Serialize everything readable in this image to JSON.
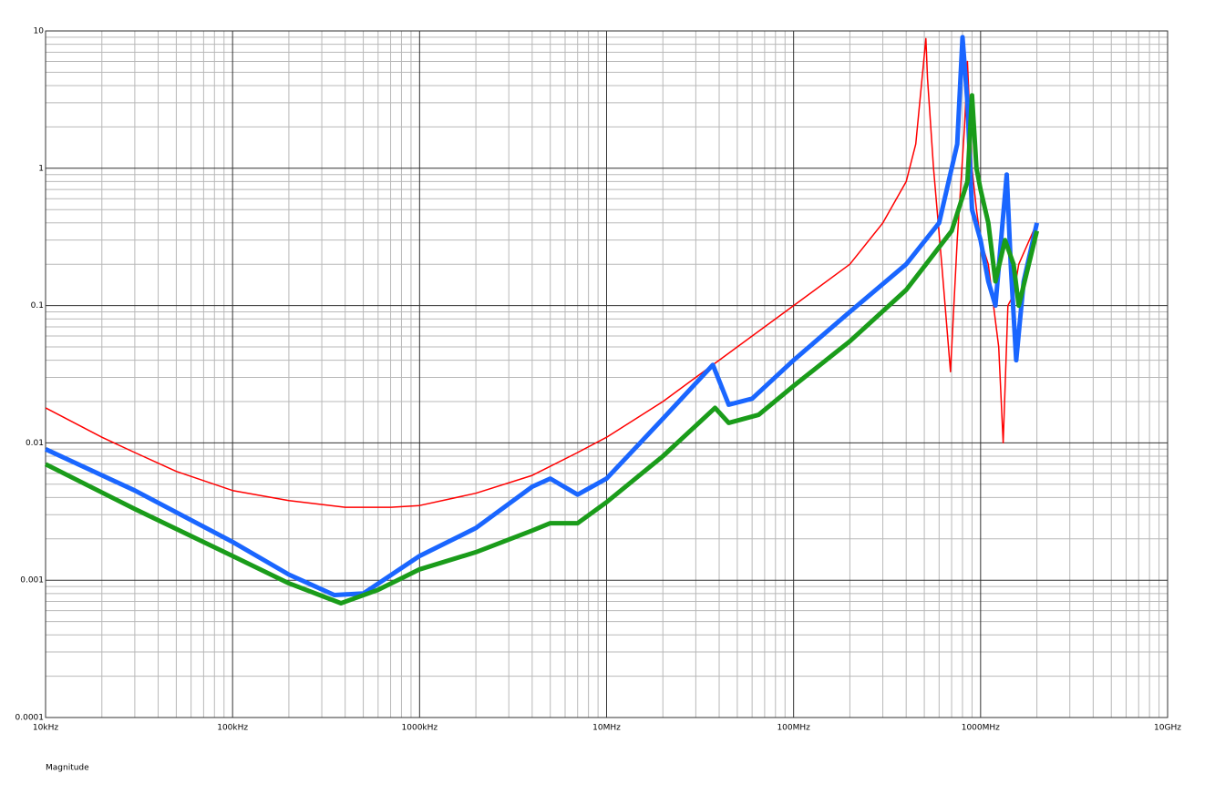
{
  "chart_data": {
    "type": "line",
    "x_scale": "log",
    "y_scale": "log",
    "grid": true,
    "minor_grid": true,
    "xlim": [
      10000,
      10000000000
    ],
    "ylim": [
      0.0001,
      10
    ],
    "xticks": [
      {
        "value": 10000,
        "label": "10kHz"
      },
      {
        "value": 100000,
        "label": "100kHz"
      },
      {
        "value": 1000000,
        "label": "1000kHz"
      },
      {
        "value": 10000000,
        "label": "10MHz"
      },
      {
        "value": 100000000,
        "label": "100MHz"
      },
      {
        "value": 1000000000,
        "label": "1000MHz"
      },
      {
        "value": 10000000000,
        "label": "10GHz"
      }
    ],
    "yticks": [
      0.0001,
      0.001,
      0.01,
      0.1,
      1,
      10
    ],
    "y_label": "Magnitude",
    "series": [
      {
        "color": "#ff0000",
        "width": 1.5,
        "x": [
          10000,
          20000,
          30000,
          50000,
          100000,
          200000,
          400000,
          700000,
          1000000,
          2000000,
          4000000,
          7000000,
          10000000,
          20000000,
          40000000,
          100000000,
          200000000,
          300000000,
          400000000,
          450000000,
          510000000,
          520000000,
          560000000,
          620000000,
          690000000,
          750000000,
          820000000,
          850000000,
          900000000,
          950000000,
          1000000000,
          1100000000,
          1250000000,
          1320000000,
          1400000000,
          1500000000,
          1600000000,
          2000000000
        ],
        "values": [
          0.018,
          0.011,
          0.0085,
          0.0062,
          0.0045,
          0.0038,
          0.0034,
          0.0034,
          0.0035,
          0.0043,
          0.0058,
          0.0085,
          0.011,
          0.02,
          0.04,
          0.1,
          0.2,
          0.4,
          0.8,
          1.5,
          8.8,
          4.5,
          1.0,
          0.2,
          0.033,
          0.3,
          2,
          6,
          1,
          0.5,
          0.3,
          0.2,
          0.05,
          0.01,
          0.1,
          0.12,
          0.2,
          0.4
        ]
      },
      {
        "color": "#1a66ff",
        "width": 5,
        "x": [
          10000,
          30000,
          100000,
          200000,
          350000,
          500000,
          1000000,
          2000000,
          4000000,
          5000000,
          7000000,
          10000000,
          20000000,
          37000000,
          45000000,
          60000000,
          100000000,
          200000000,
          400000000,
          600000000,
          750000000,
          800000000,
          850000000,
          900000000,
          1000000000,
          1100000000,
          1200000000,
          1380000000,
          1450000000,
          1550000000,
          1700000000,
          2000000000
        ],
        "values": [
          0.009,
          0.0045,
          0.0019,
          0.0011,
          0.00078,
          0.0008,
          0.0015,
          0.0024,
          0.0048,
          0.0055,
          0.0042,
          0.0055,
          0.015,
          0.037,
          0.019,
          0.021,
          0.04,
          0.09,
          0.2,
          0.4,
          1.5,
          9,
          3,
          0.5,
          0.3,
          0.15,
          0.1,
          0.9,
          0.2,
          0.04,
          0.15,
          0.4
        ]
      },
      {
        "color": "#1a9c1a",
        "width": 5,
        "x": [
          10000,
          30000,
          100000,
          200000,
          380000,
          600000,
          1000000,
          2000000,
          4000000,
          5000000,
          7000000,
          10000000,
          20000000,
          38000000,
          45000000,
          65000000,
          100000000,
          200000000,
          400000000,
          700000000,
          850000000,
          900000000,
          950000000,
          1000000000,
          1100000000,
          1200000000,
          1350000000,
          1500000000,
          1600000000,
          2000000000
        ],
        "values": [
          0.007,
          0.0033,
          0.0015,
          0.00095,
          0.00068,
          0.00085,
          0.0012,
          0.0016,
          0.0023,
          0.0026,
          0.0026,
          0.0037,
          0.008,
          0.018,
          0.014,
          0.016,
          0.026,
          0.055,
          0.13,
          0.35,
          0.8,
          3.4,
          1,
          0.7,
          0.4,
          0.15,
          0.3,
          0.2,
          0.1,
          0.35
        ]
      }
    ]
  }
}
